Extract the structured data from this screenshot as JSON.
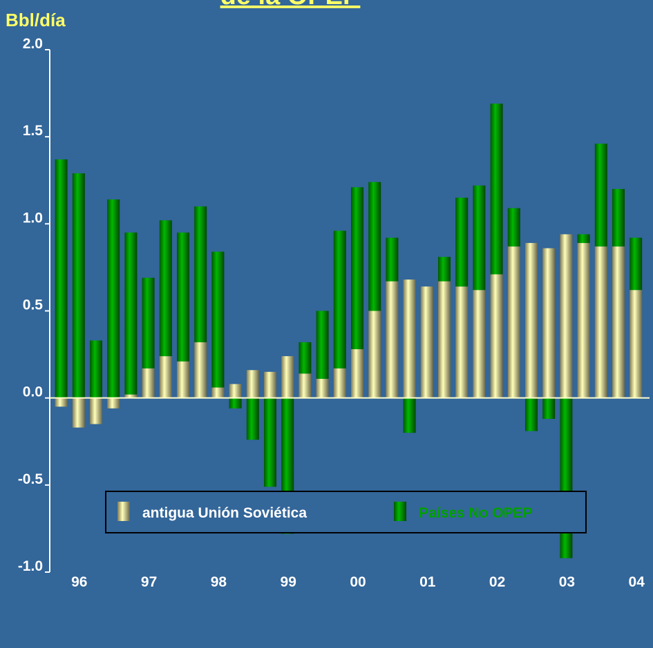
{
  "chart_data": {
    "type": "bar",
    "stacked": true,
    "title": "de la OPEP",
    "y_axis_label": "Bbl/día",
    "categories": [
      null,
      "96",
      null,
      null,
      null,
      "97",
      null,
      null,
      null,
      "98",
      null,
      null,
      null,
      "99",
      null,
      null,
      null,
      "00",
      null,
      null,
      null,
      "01",
      null,
      null,
      null,
      "02",
      null,
      null,
      null,
      "03",
      null,
      null,
      null,
      "04"
    ],
    "series": [
      {
        "name": "antigua Unión Soviética",
        "color": "#e8e0a0",
        "values": [
          -0.05,
          -0.17,
          -0.15,
          -0.06,
          0.02,
          0.17,
          0.24,
          0.21,
          0.32,
          0.06,
          0.08,
          0.16,
          0.15,
          0.24,
          0.14,
          0.11,
          0.17,
          0.28,
          0.5,
          0.67,
          0.68,
          0.64,
          0.67,
          0.64,
          0.62,
          0.71,
          0.87,
          0.89,
          0.86,
          0.94,
          0.89,
          0.87,
          0.87,
          0.62
        ]
      },
      {
        "name": "Países No OPEP",
        "color": "#00a000",
        "values": [
          1.37,
          1.29,
          0.33,
          1.14,
          0.93,
          0.52,
          0.78,
          0.74,
          0.78,
          0.78,
          -0.06,
          -0.24,
          -0.51,
          -0.78,
          0.18,
          0.39,
          0.79,
          0.93,
          0.74,
          0.25,
          -0.2,
          0,
          0.14,
          0.51,
          0.6,
          0.98,
          0.22,
          -0.19,
          -0.12,
          -0.92,
          0.05,
          0.59,
          0.33,
          0.3
        ]
      }
    ],
    "ylim": [
      -1.0,
      2.0
    ],
    "yticks": [
      {
        "value": -1.0,
        "label": "-1.0"
      },
      -0.5,
      {
        "value": 0.0,
        "label": "0.0"
      },
      0.5,
      {
        "value": 1.0,
        "label": "1.0"
      },
      1.5,
      {
        "value": 2.0,
        "label": "2.0"
      }
    ],
    "legend": "bottom"
  }
}
